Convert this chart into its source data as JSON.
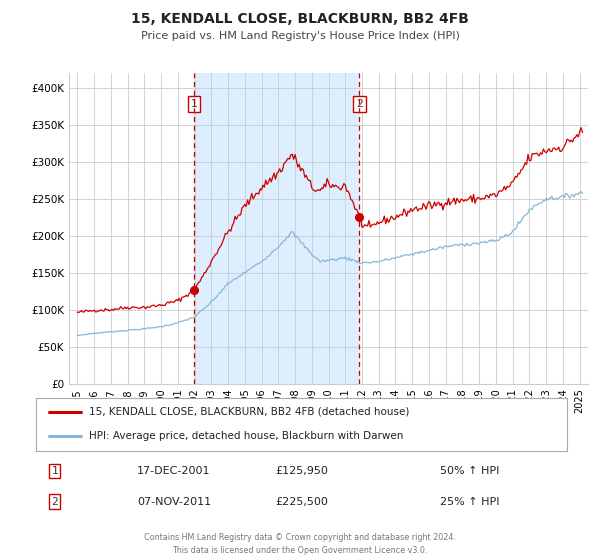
{
  "title": "15, KENDALL CLOSE, BLACKBURN, BB2 4FB",
  "subtitle": "Price paid vs. HM Land Registry's House Price Index (HPI)",
  "legend_line1": "15, KENDALL CLOSE, BLACKBURN, BB2 4FB (detached house)",
  "legend_line2": "HPI: Average price, detached house, Blackburn with Darwen",
  "footer1": "Contains HM Land Registry data © Crown copyright and database right 2024.",
  "footer2": "This data is licensed under the Open Government Licence v3.0.",
  "transaction1_date": "17-DEC-2001",
  "transaction1_price": "£125,950",
  "transaction1_hpi": "50% ↑ HPI",
  "transaction2_date": "07-NOV-2011",
  "transaction2_price": "£225,500",
  "transaction2_hpi": "25% ↑ HPI",
  "t1_year": 2001.96,
  "t2_year": 2011.85,
  "t1_price": 125950,
  "t2_price": 225500,
  "hpi_color": "#85b8d8",
  "price_color": "#cc0000",
  "marker_color": "#cc0000",
  "vline_color": "#cc0000",
  "shade_color": "#ddeeff",
  "grid_color": "#cccccc",
  "bg_color": "#ffffff",
  "ylim": [
    0,
    420000
  ],
  "yticks": [
    0,
    50000,
    100000,
    150000,
    200000,
    250000,
    300000,
    350000,
    400000
  ],
  "ytick_labels": [
    "£0",
    "£50K",
    "£100K",
    "£150K",
    "£200K",
    "£250K",
    "£300K",
    "£350K",
    "£400K"
  ],
  "xlim_start": 1994.5,
  "xlim_end": 2025.5
}
